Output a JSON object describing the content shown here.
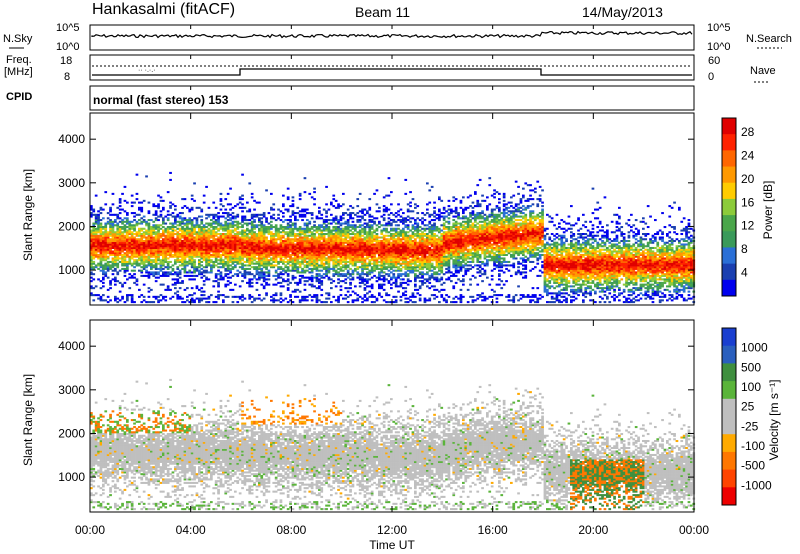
{
  "header": {
    "station": "Hankasalmi (fitACF)",
    "beam": "Beam 11",
    "date": "14/May/2013"
  },
  "strip": {
    "nsky_label": "N.Sky",
    "nsky_top": "10^5",
    "nsky_bottom": "10^0",
    "nsearch_label": "N.Search",
    "nsearch_top": "10^5",
    "nsearch_bottom": "10^0",
    "freq_label_1": "Freq.",
    "freq_label_2": "[MHz]",
    "freq_top": "18",
    "freq_bottom": "8",
    "nave_label": "Nave",
    "nave_top": "60",
    "nave_bottom": "0",
    "cpid_label": "CPID",
    "cpid_value": "normal (fast stereo) 153"
  },
  "chart_data": [
    {
      "type": "heatmap",
      "panel": "power",
      "ylabel": "Slant Range [km]",
      "yticks": [
        1000,
        2000,
        3000,
        4000
      ],
      "ylim": [
        200,
        4600
      ],
      "xlim_hours": [
        0,
        24
      ],
      "colorbar": {
        "label": "Power [dB]",
        "ticks": [
          "4",
          "8",
          "12",
          "16",
          "20",
          "24",
          "28"
        ],
        "colors": [
          "#0000ee",
          "#1a3fb0",
          "#2a6fd6",
          "#3a9a5a",
          "#4aa64a",
          "#8ccb3a",
          "#ffcc00",
          "#ff9900",
          "#ff6600",
          "#ff2200",
          "#e00000"
        ]
      },
      "scatter_bands": [
        {
          "t0": 0,
          "t1": 6,
          "r0": 1300,
          "r1": 1800,
          "level": "high"
        },
        {
          "t0": 6,
          "t1": 14,
          "r0": 1300,
          "r1": 1700,
          "level": "mid"
        },
        {
          "t0": 14,
          "t1": 18,
          "r0": 1600,
          "r1": 2000,
          "level": "mid"
        },
        {
          "t0": 18,
          "t1": 24,
          "r0": 700,
          "r1": 1500,
          "level": "high"
        }
      ]
    },
    {
      "type": "heatmap",
      "panel": "velocity",
      "ylabel": "Slant Range [km]",
      "yticks": [
        1000,
        2000,
        3000,
        4000
      ],
      "ylim": [
        200,
        4600
      ],
      "xlim_hours": [
        0,
        24
      ],
      "xticks": [
        "00:00",
        "04:00",
        "08:00",
        "12:00",
        "16:00",
        "20:00",
        "00:00"
      ],
      "xlabel": "Time UT",
      "colorbar": {
        "label": "Velocity [m s⁻¹]",
        "ticks": [
          "1000",
          "500",
          "100",
          "25",
          "-25",
          "-100",
          "-500",
          "-1000"
        ],
        "colors": [
          "#1a3fd0",
          "#2a5fbe",
          "#3f8f3f",
          "#5ab43a",
          "#bfbfbf",
          "#bfbfbf",
          "#ffaa00",
          "#ff7700",
          "#ff4400",
          "#ee0000"
        ]
      }
    }
  ]
}
